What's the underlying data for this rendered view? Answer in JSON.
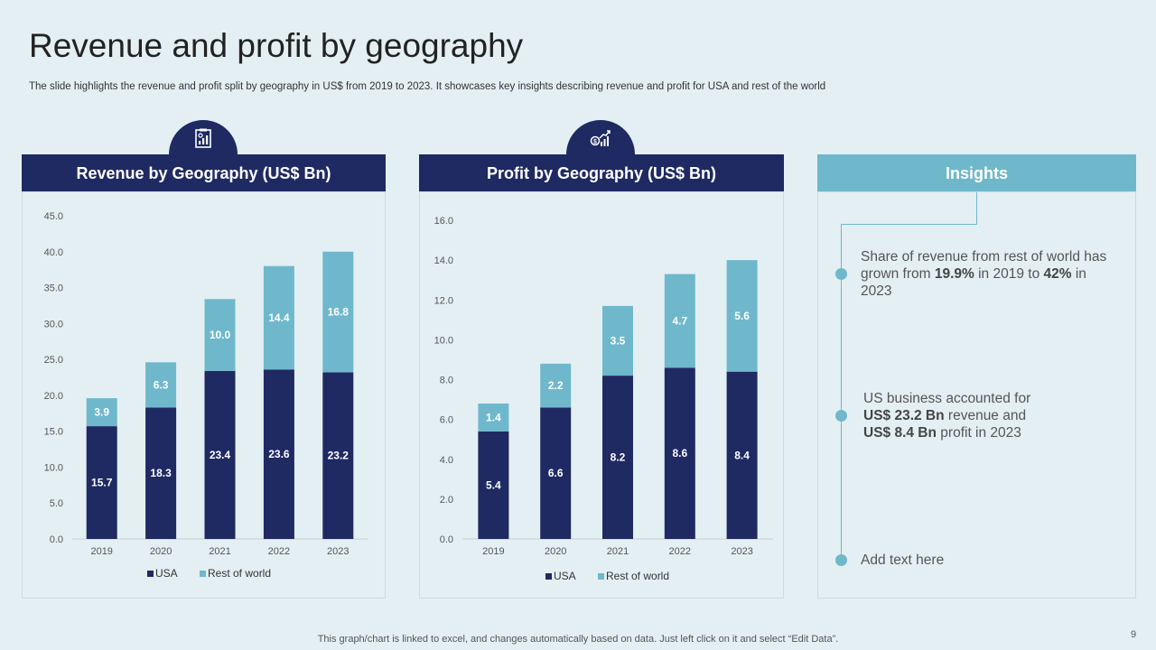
{
  "header": {
    "title": "Revenue and profit by geography",
    "subtitle": "The slide highlights the revenue and profit split by geography in US$ from 2019 to 2023. It showcases key insights describing revenue and profit for USA and rest of the world"
  },
  "panels": {
    "revenue_title": "Revenue by Geography (US$ Bn)",
    "profit_title": "Profit by Geography (US$ Bn)",
    "insights_title": "Insights"
  },
  "icons": {
    "revenue": "report-chart-icon",
    "profit": "money-growth-icon"
  },
  "colors": {
    "dark": "#1f2a63",
    "light": "#6fb8cc",
    "background": "#e4eff3"
  },
  "chart_data": [
    {
      "type": "bar",
      "stacked": true,
      "title": "Revenue by Geography (US$ Bn)",
      "categories": [
        "2019",
        "2020",
        "2021",
        "2022",
        "2023"
      ],
      "series": [
        {
          "name": "USA",
          "values": [
            15.7,
            18.3,
            23.4,
            23.6,
            23.2
          ],
          "color": "#1f2a63"
        },
        {
          "name": "Rest of world",
          "values": [
            3.9,
            6.3,
            10.0,
            14.4,
            16.8
          ],
          "color": "#6fb8cc"
        }
      ],
      "ylim": [
        0,
        45
      ],
      "yticks": [
        "0.0",
        "5.0",
        "10.0",
        "15.0",
        "20.0",
        "25.0",
        "30.0",
        "35.0",
        "40.0",
        "45.0"
      ],
      "legend": "bottom"
    },
    {
      "type": "bar",
      "stacked": true,
      "title": "Profit by Geography (US$ Bn)",
      "categories": [
        "2019",
        "2020",
        "2021",
        "2022",
        "2023"
      ],
      "series": [
        {
          "name": "USA",
          "values": [
            5.4,
            6.6,
            8.2,
            8.6,
            8.4
          ],
          "color": "#1f2a63"
        },
        {
          "name": "Rest of world",
          "values": [
            1.4,
            2.2,
            3.5,
            4.7,
            5.6
          ],
          "color": "#6fb8cc"
        }
      ],
      "ylim": [
        0,
        16
      ],
      "yticks": [
        "0.0",
        "2.0",
        "4.0",
        "6.0",
        "8.0",
        "10.0",
        "12.0",
        "14.0",
        "16.0"
      ],
      "legend": "bottom"
    }
  ],
  "insights": {
    "item1": {
      "pre": "Share of revenue from rest of world has grown from ",
      "b1": "19.9%",
      "mid": " in 2019 to ",
      "b2": "42%",
      "post": " in 2023"
    },
    "item2": {
      "pre": "US business accounted for ",
      "b1": "US$ 23.2 Bn",
      "mid": " revenue and ",
      "b2": "US$ 8.4 Bn",
      "post": " profit in 2023"
    },
    "item3": "Add text here"
  },
  "footer": {
    "note": "This graph/chart is linked to excel, and changes automatically based on data. Just left click on it and select “Edit Data”.",
    "page": "9"
  }
}
